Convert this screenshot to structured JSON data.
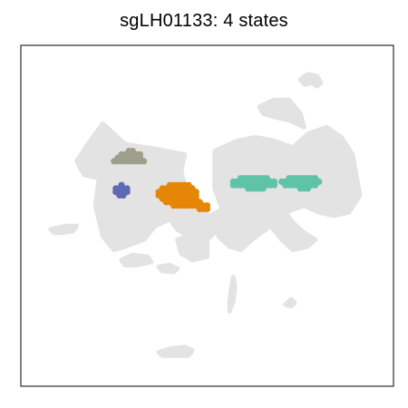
{
  "chart_data": {
    "type": "scatter",
    "title": "sgLH01133: 4 states",
    "xlabel": "",
    "ylabel": "",
    "xlim": [
      0,
      100
    ],
    "ylim": [
      0,
      100
    ],
    "grid": false,
    "axes_ticks": false,
    "legend": "none",
    "background_points": {
      "color": "#e3e3e3",
      "description_regions": [
        {
          "shape": "polygon",
          "points": [
            [
              22,
              77
            ],
            [
              28,
              71
            ],
            [
              34,
              70
            ],
            [
              44,
              68
            ],
            [
              43,
              63
            ],
            [
              44,
              59
            ],
            [
              45,
              54
            ],
            [
              48,
              51
            ],
            [
              49,
              46
            ],
            [
              45,
              44
            ],
            [
              42,
              46
            ],
            [
              40,
              49
            ],
            [
              36,
              47
            ],
            [
              33,
              43
            ],
            [
              28,
              41
            ],
            [
              25,
              40
            ],
            [
              22,
              44
            ],
            [
              20,
              53
            ],
            [
              21,
              61
            ],
            [
              17,
              62
            ],
            [
              15,
              66
            ],
            [
              18,
              71
            ]
          ]
        },
        {
          "shape": "polygon",
          "points": [
            [
              48,
              51
            ],
            [
              51,
              50
            ],
            [
              54,
              52
            ],
            [
              52,
              45
            ],
            [
              50,
              43
            ],
            [
              50,
              38
            ],
            [
              46,
              37
            ],
            [
              43,
              39
            ],
            [
              42,
              43
            ],
            [
              45,
              44
            ],
            [
              49,
              46
            ]
          ]
        },
        {
          "shape": "polygon",
          "points": [
            [
              52,
              69
            ],
            [
              58,
              72
            ],
            [
              63,
              73
            ],
            [
              68,
              72
            ],
            [
              73,
              70
            ],
            [
              77,
              74
            ],
            [
              82,
              76
            ],
            [
              86,
              73
            ],
            [
              89,
              68
            ],
            [
              90,
              62
            ],
            [
              91,
              56
            ],
            [
              88,
              51
            ],
            [
              84,
              50
            ],
            [
              80,
              51
            ],
            [
              76,
              53
            ],
            [
              71,
              51
            ],
            [
              67,
              47
            ],
            [
              62,
              43
            ],
            [
              59,
              40
            ],
            [
              56,
              41
            ],
            [
              53,
              44
            ],
            [
              54,
              52
            ],
            [
              52,
              58
            ],
            [
              52,
              64
            ]
          ]
        },
        {
          "shape": "polygon",
          "points": [
            [
              71,
              51
            ],
            [
              73,
              48
            ],
            [
              76,
              45
            ],
            [
              79,
              43
            ],
            [
              77,
              41
            ],
            [
              73,
              40
            ],
            [
              70,
              43
            ],
            [
              67,
              47
            ]
          ]
        },
        {
          "shape": "polygon",
          "points": [
            [
              64,
              82
            ],
            [
              68,
              84
            ],
            [
              72,
              84
            ],
            [
              75,
              80
            ],
            [
              76,
              76
            ],
            [
              72,
              78
            ],
            [
              68,
              79
            ],
            [
              65,
              80
            ]
          ]
        },
        {
          "shape": "polygon",
          "points": [
            [
              75,
              90
            ],
            [
              77,
              91.5
            ],
            [
              79.5,
              91
            ],
            [
              80.5,
              89
            ],
            [
              79.5,
              88
            ],
            [
              78,
              89
            ],
            [
              76,
              88.5
            ]
          ]
        },
        {
          "shape": "polygon",
          "points": [
            [
              8,
              46
            ],
            [
              12,
              47
            ],
            [
              15,
              47
            ],
            [
              14,
              45.5
            ],
            [
              11,
              45
            ],
            [
              9,
              45
            ]
          ]
        },
        {
          "shape": "polygon",
          "points": [
            [
              27,
              37
            ],
            [
              30,
              38.5
            ],
            [
              34,
              38
            ],
            [
              35,
              36.5
            ],
            [
              31,
              35.5
            ],
            [
              28,
              35.5
            ]
          ]
        },
        {
          "shape": "polygon",
          "points": [
            [
              37,
              35
            ],
            [
              40,
              35.5
            ],
            [
              42,
              34.5
            ],
            [
              41,
              33.5
            ],
            [
              38,
              33.8
            ]
          ]
        },
        {
          "shape": "polygon",
          "points": [
            [
              37,
              10
            ],
            [
              40,
              11
            ],
            [
              44,
              11.5
            ],
            [
              46,
              10.5
            ],
            [
              45,
              9
            ],
            [
              41,
              9
            ],
            [
              38,
              9
            ]
          ]
        },
        {
          "shape": "polygon",
          "points": [
            [
              56,
              22
            ],
            [
              57,
              25
            ],
            [
              57.5,
              29
            ],
            [
              57,
              32
            ],
            [
              56.5,
              29
            ],
            [
              56,
              25
            ]
          ]
        },
        {
          "shape": "polygon",
          "points": [
            [
              71,
              24
            ],
            [
              72.5,
              25.5
            ],
            [
              73.5,
              24.5
            ],
            [
              72.5,
              23.5
            ]
          ]
        }
      ]
    },
    "series": [
      {
        "color": "#9e9e8c",
        "points": [
          [
            25,
            66
          ],
          [
            26,
            66
          ],
          [
            27,
            66
          ],
          [
            28,
            66
          ],
          [
            29,
            66
          ],
          [
            30,
            66
          ],
          [
            31,
            66
          ],
          [
            32,
            66
          ],
          [
            33,
            66
          ],
          [
            26,
            67
          ],
          [
            27,
            67
          ],
          [
            28,
            67
          ],
          [
            29,
            67
          ],
          [
            30,
            67
          ],
          [
            31,
            67
          ],
          [
            32,
            67
          ],
          [
            27,
            68
          ],
          [
            28,
            68
          ],
          [
            29,
            68
          ],
          [
            30,
            68
          ],
          [
            31,
            68
          ],
          [
            32,
            68
          ],
          [
            29,
            69
          ],
          [
            30,
            69
          ]
        ]
      },
      {
        "color": "#5f69b3",
        "points": [
          [
            25.5,
            57
          ],
          [
            26.5,
            57
          ],
          [
            27.5,
            57
          ],
          [
            28.5,
            57
          ],
          [
            25.5,
            58
          ],
          [
            26.5,
            58
          ],
          [
            27.5,
            58
          ],
          [
            28.5,
            58
          ],
          [
            26.5,
            56
          ],
          [
            27.5,
            56
          ],
          [
            27,
            59
          ]
        ]
      },
      {
        "color": "#e68607",
        "points": [
          [
            37,
            57
          ],
          [
            38,
            57
          ],
          [
            39,
            57
          ],
          [
            40,
            57
          ],
          [
            41,
            57
          ],
          [
            42,
            57
          ],
          [
            43,
            57
          ],
          [
            44,
            57
          ],
          [
            45,
            57
          ],
          [
            46,
            57
          ],
          [
            47,
            57
          ],
          [
            37,
            56
          ],
          [
            38,
            56
          ],
          [
            39,
            56
          ],
          [
            40,
            56
          ],
          [
            41,
            56
          ],
          [
            42,
            56
          ],
          [
            43,
            56
          ],
          [
            44,
            56
          ],
          [
            45,
            56
          ],
          [
            46,
            56
          ],
          [
            47,
            56
          ],
          [
            38,
            58
          ],
          [
            39,
            58
          ],
          [
            40,
            58
          ],
          [
            41,
            58
          ],
          [
            42,
            58
          ],
          [
            43,
            58
          ],
          [
            44,
            58
          ],
          [
            45,
            58
          ],
          [
            46,
            58
          ],
          [
            40,
            59
          ],
          [
            41,
            59
          ],
          [
            42,
            59
          ],
          [
            43,
            59
          ],
          [
            44,
            59
          ],
          [
            45,
            59
          ],
          [
            38,
            55
          ],
          [
            39,
            55
          ],
          [
            40,
            55
          ],
          [
            41,
            55
          ],
          [
            42,
            55
          ],
          [
            43,
            55
          ],
          [
            44,
            55
          ],
          [
            45,
            55
          ],
          [
            46,
            55
          ],
          [
            47,
            55
          ],
          [
            39,
            54
          ],
          [
            40,
            54
          ],
          [
            41,
            54
          ],
          [
            42,
            54
          ],
          [
            43,
            54
          ],
          [
            44,
            54
          ],
          [
            45,
            54
          ],
          [
            46,
            54
          ],
          [
            47,
            54
          ],
          [
            48,
            54
          ],
          [
            41,
            53
          ],
          [
            42,
            53
          ],
          [
            43,
            53
          ],
          [
            44,
            53
          ],
          [
            45,
            53
          ],
          [
            46,
            53
          ],
          [
            47,
            53
          ],
          [
            48,
            53
          ],
          [
            49,
            53
          ],
          [
            50,
            53
          ],
          [
            48,
            52
          ],
          [
            49,
            52
          ],
          [
            50,
            52
          ]
        ]
      },
      {
        "color": "#5fc3a7",
        "points": [
          [
            57,
            60
          ],
          [
            58,
            60
          ],
          [
            59,
            60
          ],
          [
            60,
            60
          ],
          [
            61,
            60
          ],
          [
            62,
            60
          ],
          [
            63,
            60
          ],
          [
            64,
            60
          ],
          [
            65,
            60
          ],
          [
            66,
            60
          ],
          [
            67,
            60
          ],
          [
            68,
            60
          ],
          [
            57,
            59
          ],
          [
            58,
            59
          ],
          [
            59,
            59
          ],
          [
            60,
            59
          ],
          [
            61,
            59
          ],
          [
            62,
            59
          ],
          [
            63,
            59
          ],
          [
            64,
            59
          ],
          [
            65,
            59
          ],
          [
            66,
            59
          ],
          [
            67,
            59
          ],
          [
            68,
            59
          ],
          [
            59,
            61
          ],
          [
            60,
            61
          ],
          [
            61,
            61
          ],
          [
            62,
            61
          ],
          [
            63,
            61
          ],
          [
            64,
            61
          ],
          [
            65,
            61
          ],
          [
            66,
            61
          ],
          [
            61,
            58
          ],
          [
            62,
            58
          ],
          [
            63,
            58
          ],
          [
            64,
            58
          ],
          [
            65,
            58
          ],
          [
            70,
            60
          ],
          [
            71,
            60
          ],
          [
            72,
            60
          ],
          [
            73,
            60
          ],
          [
            74,
            60
          ],
          [
            75,
            60
          ],
          [
            76,
            60
          ],
          [
            77,
            60
          ],
          [
            78,
            60
          ],
          [
            79,
            60
          ],
          [
            80,
            60
          ],
          [
            71,
            59
          ],
          [
            72,
            59
          ],
          [
            73,
            59
          ],
          [
            74,
            59
          ],
          [
            75,
            59
          ],
          [
            76,
            59
          ],
          [
            77,
            59
          ],
          [
            78,
            59
          ],
          [
            79,
            59
          ],
          [
            72,
            61
          ],
          [
            73,
            61
          ],
          [
            74,
            61
          ],
          [
            75,
            61
          ],
          [
            76,
            61
          ],
          [
            77,
            61
          ],
          [
            78,
            61
          ],
          [
            79,
            61
          ],
          [
            75,
            58
          ],
          [
            76,
            58
          ],
          [
            77,
            58
          ]
        ]
      }
    ]
  }
}
